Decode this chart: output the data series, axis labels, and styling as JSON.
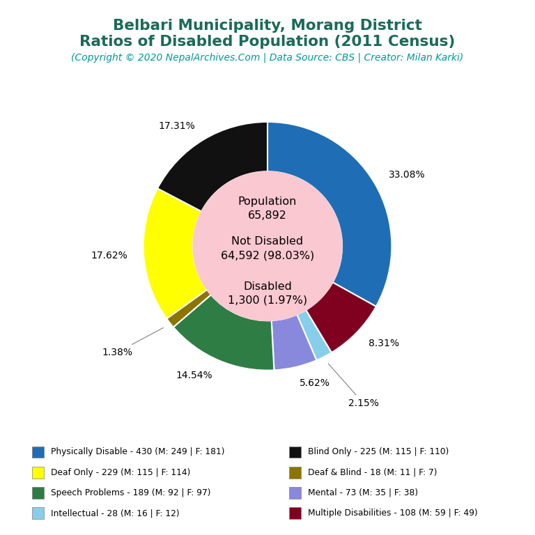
{
  "title_line1": "Belbari Municipality, Morang District",
  "title_line2": "Ratios of Disabled Population (2011 Census)",
  "subtitle": "(Copyright © 2020 NepalArchives.Com | Data Source: CBS | Creator: Milan Karki)",
  "title_color": "#1a6b5a",
  "subtitle_color": "#009999",
  "total_population": 65892,
  "not_disabled": 64592,
  "not_disabled_pct": 98.03,
  "disabled": 1300,
  "disabled_pct": 1.97,
  "center_bg": "#f9c8d0",
  "slices": [
    {
      "label": "Physically Disable - 430 (M: 249 | F: 181)",
      "value": 430,
      "pct": 33.08,
      "color": "#1f6eb5"
    },
    {
      "label": "Multiple Disabilities - 108 (M: 59 | F: 49)",
      "value": 108,
      "pct": 8.31,
      "color": "#800020"
    },
    {
      "label": "Intellectual - 28 (M: 16 | F: 12)",
      "value": 28,
      "pct": 2.15,
      "color": "#87ceeb"
    },
    {
      "label": "Mental - 73 (M: 35 | F: 38)",
      "value": 73,
      "pct": 5.62,
      "color": "#8888dd"
    },
    {
      "label": "Speech Problems - 189 (M: 92 | F: 97)",
      "value": 189,
      "pct": 14.54,
      "color": "#2e7d45"
    },
    {
      "label": "Deaf & Blind - 18 (M: 11 | F: 7)",
      "value": 18,
      "pct": 1.38,
      "color": "#8b7500"
    },
    {
      "label": "Deaf Only - 229 (M: 115 | F: 114)",
      "value": 229,
      "pct": 17.62,
      "color": "#ffff00"
    },
    {
      "label": "Blind Only - 225 (M: 115 | F: 110)",
      "value": 225,
      "pct": 17.31,
      "color": "#111111"
    }
  ],
  "legend_entries_col1": [
    {
      "label": "Physically Disable - 430 (M: 249 | F: 181)",
      "color": "#1f6eb5"
    },
    {
      "label": "Deaf Only - 229 (M: 115 | F: 114)",
      "color": "#ffff00"
    },
    {
      "label": "Speech Problems - 189 (M: 92 | F: 97)",
      "color": "#2e7d45"
    },
    {
      "label": "Intellectual - 28 (M: 16 | F: 12)",
      "color": "#87ceeb"
    }
  ],
  "legend_entries_col2": [
    {
      "label": "Blind Only - 225 (M: 115 | F: 110)",
      "color": "#111111"
    },
    {
      "label": "Deaf & Blind - 18 (M: 11 | F: 7)",
      "color": "#8b7500"
    },
    {
      "label": "Mental - 73 (M: 35 | F: 38)",
      "color": "#8888dd"
    },
    {
      "label": "Multiple Disabilities - 108 (M: 59 | F: 49)",
      "color": "#800020"
    }
  ],
  "bg_color": "#ffffff"
}
